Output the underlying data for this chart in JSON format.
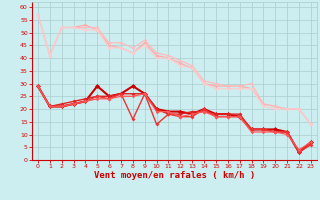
{
  "xlabel": "Vent moyen/en rafales ( km/h )",
  "xlim": [
    -0.5,
    23.5
  ],
  "ylim": [
    0,
    62
  ],
  "bg_color": "#cceef0",
  "grid_color": "#aacccc",
  "x_ticks": [
    0,
    1,
    2,
    3,
    4,
    5,
    6,
    7,
    8,
    9,
    10,
    11,
    12,
    13,
    14,
    15,
    16,
    17,
    18,
    19,
    20,
    21,
    22,
    23
  ],
  "y_ticks": [
    0,
    5,
    10,
    15,
    20,
    25,
    30,
    35,
    40,
    45,
    50,
    55,
    60
  ],
  "lines": [
    {
      "x": [
        0,
        1,
        2,
        3,
        4,
        5,
        6,
        7,
        8,
        9,
        10,
        11,
        12,
        13,
        14,
        15,
        16,
        17,
        18,
        19,
        20,
        21,
        22,
        23
      ],
      "y": [
        57,
        41,
        52,
        52,
        53,
        51,
        45,
        44,
        42,
        46,
        41,
        40,
        38,
        36,
        30,
        29,
        29,
        29,
        28,
        22,
        21,
        20,
        20,
        14
      ],
      "color": "#ffaaaa",
      "lw": 0.9,
      "ms": 1.8
    },
    {
      "x": [
        0,
        1,
        2,
        3,
        4,
        5,
        6,
        7,
        8,
        9,
        10,
        11,
        12,
        13,
        14,
        15,
        16,
        17,
        18,
        19,
        20,
        21,
        22,
        23
      ],
      "y": [
        57,
        41,
        52,
        52,
        52,
        52,
        46,
        46,
        44,
        47,
        42,
        41,
        39,
        37,
        31,
        30,
        29,
        29,
        30,
        22,
        21,
        20,
        20,
        14
      ],
      "color": "#ffbbbb",
      "lw": 0.9,
      "ms": 1.8
    },
    {
      "x": [
        0,
        1,
        2,
        3,
        4,
        5,
        6,
        7,
        8,
        9,
        10,
        11,
        12,
        13,
        14,
        15,
        16,
        17,
        18,
        19,
        20,
        21,
        22,
        23
      ],
      "y": [
        57,
        41,
        52,
        52,
        51,
        51,
        44,
        44,
        42,
        45,
        40,
        40,
        37,
        36,
        30,
        28,
        28,
        28,
        28,
        21,
        20,
        20,
        20,
        14
      ],
      "color": "#ffcccc",
      "lw": 0.9,
      "ms": 1.8
    },
    {
      "x": [
        0,
        1,
        2,
        3,
        4,
        5,
        6,
        7,
        8,
        9,
        10,
        11,
        12,
        13,
        14,
        15,
        16,
        17,
        18,
        19,
        20,
        21,
        22,
        23
      ],
      "y": [
        29,
        21,
        21,
        22,
        23,
        29,
        25,
        26,
        29,
        26,
        20,
        19,
        19,
        18,
        20,
        18,
        18,
        17,
        12,
        12,
        12,
        11,
        3,
        7
      ],
      "color": "#cc0000",
      "lw": 1.5,
      "ms": 2.5
    },
    {
      "x": [
        0,
        1,
        2,
        3,
        4,
        5,
        6,
        7,
        8,
        9,
        10,
        11,
        12,
        13,
        14,
        15,
        16,
        17,
        18,
        19,
        20,
        21,
        22,
        23
      ],
      "y": [
        29,
        21,
        22,
        23,
        24,
        25,
        25,
        26,
        26,
        26,
        20,
        18,
        18,
        19,
        19,
        18,
        18,
        18,
        12,
        12,
        11,
        11,
        3,
        7
      ],
      "color": "#dd2222",
      "lw": 1.0,
      "ms": 2.0
    },
    {
      "x": [
        0,
        1,
        2,
        3,
        4,
        5,
        6,
        7,
        8,
        9,
        10,
        11,
        12,
        13,
        14,
        15,
        16,
        17,
        18,
        19,
        20,
        21,
        22,
        23
      ],
      "y": [
        29,
        21,
        21,
        22,
        23,
        25,
        24,
        26,
        16,
        26,
        14,
        18,
        17,
        17,
        20,
        17,
        17,
        17,
        12,
        12,
        11,
        11,
        3,
        6
      ],
      "color": "#ee3333",
      "lw": 1.0,
      "ms": 2.0
    },
    {
      "x": [
        0,
        1,
        2,
        3,
        4,
        5,
        6,
        7,
        8,
        9,
        10,
        11,
        12,
        13,
        14,
        15,
        16,
        17,
        18,
        19,
        20,
        21,
        22,
        23
      ],
      "y": [
        29,
        21,
        21,
        22,
        23,
        24,
        24,
        25,
        25,
        26,
        19,
        19,
        17,
        18,
        19,
        17,
        17,
        17,
        11,
        11,
        11,
        10,
        4,
        7
      ],
      "color": "#ff5555",
      "lw": 0.9,
      "ms": 1.8
    }
  ],
  "tick_color": "#dd0000",
  "tick_fontsize": 4.5,
  "xlabel_fontsize": 6.5,
  "xlabel_color": "#cc0000",
  "spine_color": "#cc0000"
}
